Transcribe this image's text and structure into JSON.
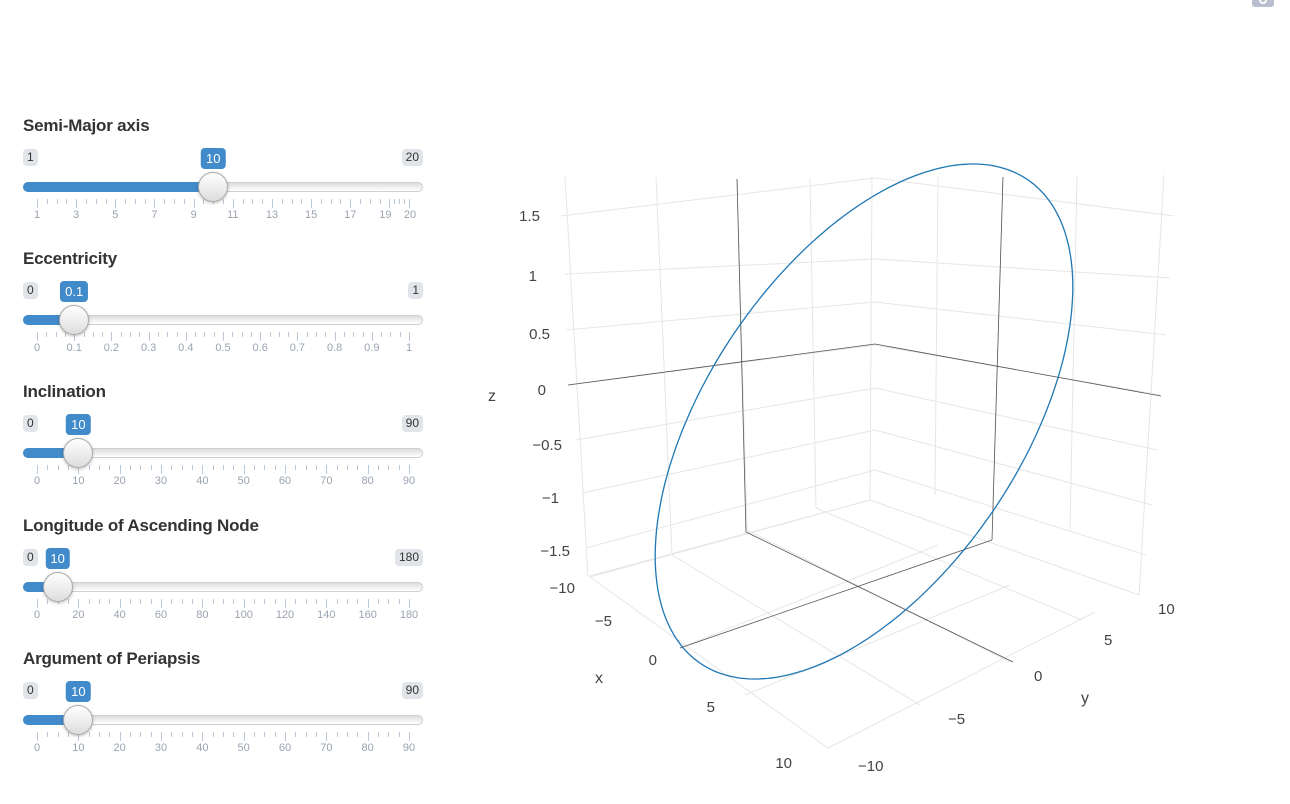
{
  "toolbar": {
    "corner_icon": "camera-icon"
  },
  "colors": {
    "accent": "#428bca",
    "orbit": "#1f77b4"
  },
  "sliders": [
    {
      "id": "semi-major-axis",
      "title": "Semi-Major axis",
      "min": 1,
      "max": 20,
      "value": 10,
      "min_label": "1",
      "max_label": "20",
      "value_label": "10",
      "grid_labels": [
        "1",
        "3",
        "5",
        "7",
        "9",
        "11",
        "13",
        "15",
        "17",
        "19",
        "20"
      ]
    },
    {
      "id": "eccentricity",
      "title": "Eccentricity",
      "min": 0,
      "max": 1,
      "value": 0.1,
      "min_label": "0",
      "max_label": "1",
      "value_label": "0.1",
      "grid_labels": [
        "0",
        "0.1",
        "0.2",
        "0.3",
        "0.4",
        "0.5",
        "0.6",
        "0.7",
        "0.8",
        "0.9",
        "1"
      ]
    },
    {
      "id": "inclination",
      "title": "Inclination",
      "min": 0,
      "max": 90,
      "value": 10,
      "min_label": "0",
      "max_label": "90",
      "value_label": "10",
      "grid_labels": [
        "0",
        "10",
        "20",
        "30",
        "40",
        "50",
        "60",
        "70",
        "80",
        "90"
      ]
    },
    {
      "id": "longitude-ascending-node",
      "title": "Longitude of Ascending Node",
      "min": 0,
      "max": 180,
      "value": 10,
      "min_label": "0",
      "max_label": "180",
      "value_label": "10",
      "grid_labels": [
        "0",
        "20",
        "40",
        "60",
        "80",
        "100",
        "120",
        "140",
        "160",
        "180"
      ]
    },
    {
      "id": "argument-periapsis",
      "title": "Argument of Periapsis",
      "min": 0,
      "max": 90,
      "value": 10,
      "min_label": "0",
      "max_label": "90",
      "value_label": "10",
      "grid_labels": [
        "0",
        "10",
        "20",
        "30",
        "40",
        "50",
        "60",
        "70",
        "80",
        "90"
      ]
    }
  ],
  "plot": {
    "axis_titles": {
      "x": "x",
      "y": "y",
      "z": "z"
    },
    "z_ticks": [
      "1.5",
      "1",
      "0.5",
      "0",
      "−0.5",
      "−1",
      "−1.5"
    ],
    "x_ticks": [
      "−10",
      "−5",
      "0",
      "5",
      "10"
    ],
    "y_ticks": [
      "10",
      "5",
      "0",
      "−5",
      "−10"
    ]
  }
}
